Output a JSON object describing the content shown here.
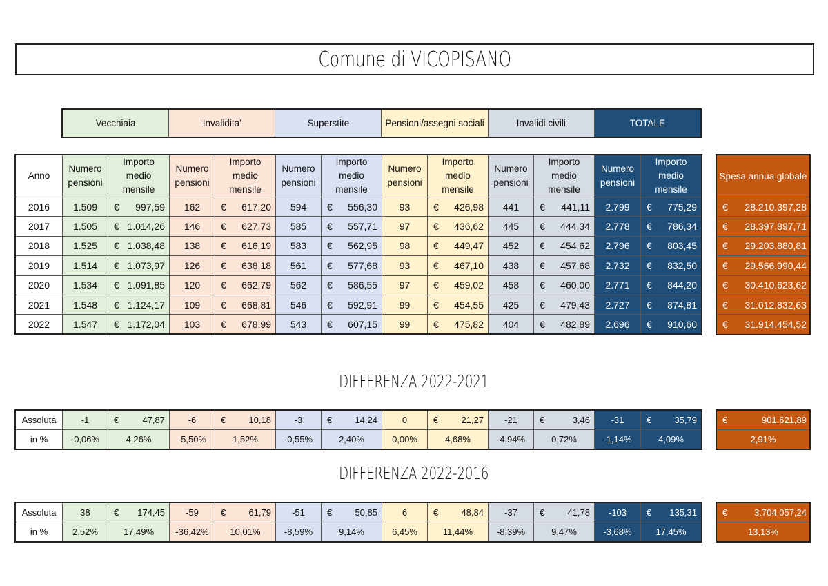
{
  "title": "Comune di VICOPISANO",
  "currency": "€",
  "categories": [
    "Vecchiaia",
    "Invalidita'",
    "Superstite",
    "Pensioni/assegni sociali",
    "Invalidi civili",
    "TOTALE"
  ],
  "headers": {
    "anno": "Anno",
    "numero": "Numero pensioni",
    "importo": "Importo medio mensile",
    "globale": "Spesa annua globale"
  },
  "colors": {
    "vecchiaia": "#e2efda",
    "invalidita": "#fce4d6",
    "superstite": "#d9e1f2",
    "sociali": "#fff2cc",
    "civili": "#d6dce4",
    "totale": "#1f4e78",
    "globale": "#c65911"
  },
  "rows": [
    {
      "anno": "2016",
      "values": [
        "1.509",
        "997,59",
        "162",
        "617,20",
        "594",
        "556,30",
        "93",
        "426,98",
        "441",
        "441,11",
        "2.799",
        "775,29"
      ],
      "globale": "28.210.397,28"
    },
    {
      "anno": "2017",
      "values": [
        "1.505",
        "1.014,26",
        "146",
        "627,73",
        "585",
        "557,71",
        "97",
        "436,62",
        "445",
        "444,34",
        "2.778",
        "786,34"
      ],
      "globale": "28.397.897,71"
    },
    {
      "anno": "2018",
      "values": [
        "1.525",
        "1.038,48",
        "138",
        "616,19",
        "583",
        "562,95",
        "98",
        "449,47",
        "452",
        "454,62",
        "2.796",
        "803,45"
      ],
      "globale": "29.203.880,81"
    },
    {
      "anno": "2019",
      "values": [
        "1.514",
        "1.073,97",
        "126",
        "638,18",
        "561",
        "577,68",
        "93",
        "467,10",
        "438",
        "457,68",
        "2.732",
        "832,50"
      ],
      "globale": "29.566.990,44"
    },
    {
      "anno": "2020",
      "values": [
        "1.534",
        "1.091,85",
        "120",
        "662,79",
        "562",
        "586,55",
        "97",
        "459,02",
        "458",
        "460,00",
        "2.771",
        "844,20"
      ],
      "globale": "30.410.623,62"
    },
    {
      "anno": "2021",
      "values": [
        "1.548",
        "1.124,17",
        "109",
        "668,81",
        "546",
        "592,91",
        "99",
        "454,55",
        "425",
        "479,43",
        "2.727",
        "874,81"
      ],
      "globale": "31.012.832,63"
    },
    {
      "anno": "2022",
      "values": [
        "1.547",
        "1.172,04",
        "103",
        "678,99",
        "543",
        "607,15",
        "99",
        "475,82",
        "404",
        "482,89",
        "2.696",
        "910,60"
      ],
      "globale": "31.914.454,52"
    }
  ],
  "diffs": [
    {
      "title": "DIFFERENZA 2022-2021",
      "assoluta": {
        "label": "Assoluta",
        "values": [
          "-1",
          "47,87",
          "-6",
          "10,18",
          "-3",
          "14,24",
          "0",
          "21,27",
          "-21",
          "3,46",
          "-31",
          "35,79"
        ],
        "globale": "901.621,89"
      },
      "percent": {
        "label": "in %",
        "values": [
          "-0,06%",
          "4,26%",
          "-5,50%",
          "1,52%",
          "-0,55%",
          "2,40%",
          "0,00%",
          "4,68%",
          "-4,94%",
          "0,72%",
          "-1,14%",
          "4,09%"
        ],
        "globale": "2,91%"
      }
    },
    {
      "title": "DIFFERENZA 2022-2016",
      "assoluta": {
        "label": "Assoluta",
        "values": [
          "38",
          "174,45",
          "-59",
          "61,79",
          "-51",
          "50,85",
          "6",
          "48,84",
          "-37",
          "41,78",
          "-103",
          "135,31"
        ],
        "globale": "3.704.057,24"
      },
      "percent": {
        "label": "in %",
        "values": [
          "2,52%",
          "17,49%",
          "-36,42%",
          "10,01%",
          "-8,59%",
          "9,14%",
          "6,45%",
          "11,44%",
          "-8,39%",
          "9,47%",
          "-3,68%",
          "17,45%"
        ],
        "globale": "13,13%"
      }
    }
  ]
}
